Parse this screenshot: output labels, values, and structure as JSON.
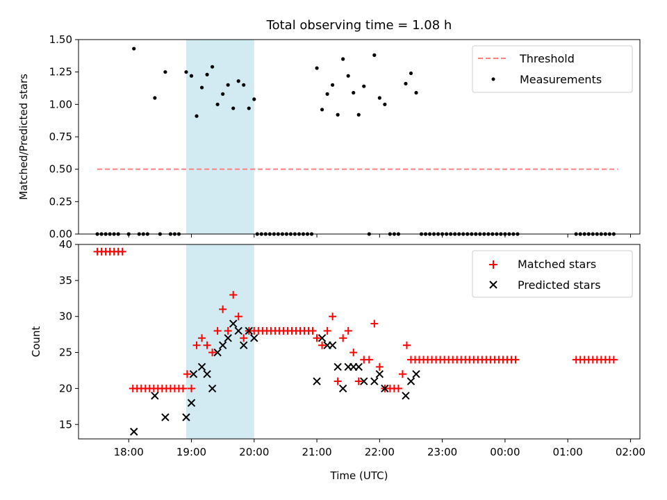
{
  "chart_data": [
    {
      "type": "scatter",
      "title": "Total observing time = 1.08 h",
      "ylabel": "Matched/Predicted stars",
      "xlabel": "",
      "xlim": [
        "17:12",
        "02:09"
      ],
      "ylim": [
        0,
        1.5
      ],
      "yticks": [
        "0.00",
        "0.25",
        "0.50",
        "0.75",
        "1.00",
        "1.25",
        "1.50"
      ],
      "xticks_shown": false,
      "shaded_region": {
        "x_start": "18:55",
        "x_end": "20:00",
        "color": "#add8e6"
      },
      "legend": {
        "placement": "upper right",
        "entries": [
          "Threshold",
          "Measurements"
        ]
      },
      "series": [
        {
          "name": "Threshold",
          "style": "dashed-line",
          "color": "#ff7f7f",
          "points": [
            [
              "17:30",
              0.5
            ],
            [
              "01:48",
              0.5
            ]
          ]
        },
        {
          "name": "Measurements",
          "style": "dot",
          "color": "#000000",
          "points": [
            [
              "17:30",
              0
            ],
            [
              "17:34",
              0
            ],
            [
              "17:38",
              0
            ],
            [
              "17:42",
              0
            ],
            [
              "17:46",
              0
            ],
            [
              "17:50",
              0
            ],
            [
              "18:00",
              0
            ],
            [
              "18:05",
              1.43
            ],
            [
              "18:10",
              0
            ],
            [
              "18:14",
              0
            ],
            [
              "18:18",
              0
            ],
            [
              "18:25",
              1.05
            ],
            [
              "18:30",
              0
            ],
            [
              "18:35",
              1.25
            ],
            [
              "18:40",
              0
            ],
            [
              "18:44",
              0
            ],
            [
              "18:48",
              0
            ],
            [
              "18:55",
              1.25
            ],
            [
              "19:00",
              1.22
            ],
            [
              "19:05",
              0.91
            ],
            [
              "19:10",
              1.13
            ],
            [
              "19:15",
              1.23
            ],
            [
              "19:20",
              1.29
            ],
            [
              "19:25",
              1.0
            ],
            [
              "19:30",
              1.08
            ],
            [
              "19:35",
              1.15
            ],
            [
              "19:40",
              0.97
            ],
            [
              "19:45",
              1.18
            ],
            [
              "19:50",
              1.15
            ],
            [
              "19:55",
              0.97
            ],
            [
              "20:00",
              1.04
            ],
            [
              "20:03",
              0
            ],
            [
              "20:07",
              0
            ],
            [
              "20:11",
              0
            ],
            [
              "20:15",
              0
            ],
            [
              "20:19",
              0
            ],
            [
              "20:23",
              0
            ],
            [
              "20:27",
              0
            ],
            [
              "20:31",
              0
            ],
            [
              "20:35",
              0
            ],
            [
              "20:39",
              0
            ],
            [
              "20:43",
              0
            ],
            [
              "20:47",
              0
            ],
            [
              "20:51",
              0
            ],
            [
              "20:55",
              0
            ],
            [
              "21:00",
              1.28
            ],
            [
              "21:05",
              0.96
            ],
            [
              "21:10",
              1.08
            ],
            [
              "21:15",
              1.15
            ],
            [
              "21:20",
              0.92
            ],
            [
              "21:25",
              1.35
            ],
            [
              "21:30",
              1.22
            ],
            [
              "21:35",
              1.09
            ],
            [
              "21:40",
              0.92
            ],
            [
              "21:45",
              1.14
            ],
            [
              "21:50",
              0
            ],
            [
              "21:55",
              1.38
            ],
            [
              "22:00",
              1.05
            ],
            [
              "22:05",
              1.0
            ],
            [
              "22:10",
              0
            ],
            [
              "22:14",
              0
            ],
            [
              "22:18",
              0
            ],
            [
              "22:25",
              1.16
            ],
            [
              "22:30",
              1.24
            ],
            [
              "22:35",
              1.09
            ],
            [
              "22:40",
              0
            ],
            [
              "22:44",
              0
            ],
            [
              "22:48",
              0
            ],
            [
              "22:52",
              0
            ],
            [
              "22:56",
              0
            ],
            [
              "23:00",
              0
            ],
            [
              "23:04",
              0
            ],
            [
              "23:08",
              0
            ],
            [
              "23:12",
              0
            ],
            [
              "23:16",
              0
            ],
            [
              "23:20",
              0
            ],
            [
              "23:24",
              0
            ],
            [
              "23:28",
              0
            ],
            [
              "23:32",
              0
            ],
            [
              "23:36",
              0
            ],
            [
              "23:40",
              0
            ],
            [
              "23:44",
              0
            ],
            [
              "23:48",
              0
            ],
            [
              "23:52",
              0
            ],
            [
              "23:56",
              0
            ],
            [
              "00:00",
              0
            ],
            [
              "00:04",
              0
            ],
            [
              "00:08",
              0
            ],
            [
              "00:12",
              0
            ],
            [
              "01:08",
              0
            ],
            [
              "01:12",
              0
            ],
            [
              "01:16",
              0
            ],
            [
              "01:20",
              0
            ],
            [
              "01:24",
              0
            ],
            [
              "01:28",
              0
            ],
            [
              "01:32",
              0
            ],
            [
              "01:36",
              0
            ],
            [
              "01:40",
              0
            ],
            [
              "01:44",
              0
            ]
          ]
        }
      ]
    },
    {
      "type": "scatter",
      "title": "",
      "xlabel": "Time (UTC)",
      "ylabel": "Count",
      "xlim": [
        "17:12",
        "02:09"
      ],
      "ylim": [
        13,
        40
      ],
      "yticks": [
        "15",
        "20",
        "25",
        "30",
        "35",
        "40"
      ],
      "xticks": [
        "18:00",
        "19:00",
        "20:00",
        "21:00",
        "22:00",
        "23:00",
        "00:00",
        "01:00",
        "02:00"
      ],
      "shaded_region": {
        "x_start": "18:55",
        "x_end": "20:00",
        "color": "#add8e6"
      },
      "legend": {
        "placement": "upper right",
        "entries": [
          "Matched stars",
          "Predicted stars"
        ]
      },
      "series": [
        {
          "name": "Matched stars",
          "marker": "plus",
          "color": "#ff0000",
          "points": [
            [
              "17:30",
              39
            ],
            [
              "17:34",
              39
            ],
            [
              "17:38",
              39
            ],
            [
              "17:42",
              39
            ],
            [
              "17:46",
              39
            ],
            [
              "17:50",
              39
            ],
            [
              "17:54",
              39
            ],
            [
              "18:04",
              20
            ],
            [
              "18:08",
              20
            ],
            [
              "18:12",
              20
            ],
            [
              "18:16",
              20
            ],
            [
              "18:20",
              20
            ],
            [
              "18:24",
              20
            ],
            [
              "18:28",
              20
            ],
            [
              "18:32",
              20
            ],
            [
              "18:36",
              20
            ],
            [
              "18:40",
              20
            ],
            [
              "18:44",
              20
            ],
            [
              "18:48",
              20
            ],
            [
              "18:52",
              20
            ],
            [
              "18:56",
              22
            ],
            [
              "19:00",
              20
            ],
            [
              "19:05",
              26
            ],
            [
              "19:10",
              27
            ],
            [
              "19:15",
              26
            ],
            [
              "19:20",
              25
            ],
            [
              "19:25",
              28
            ],
            [
              "19:30",
              31
            ],
            [
              "19:35",
              28
            ],
            [
              "19:40",
              33
            ],
            [
              "19:45",
              30
            ],
            [
              "19:50",
              27
            ],
            [
              "19:55",
              28
            ],
            [
              "20:00",
              28
            ],
            [
              "20:04",
              28
            ],
            [
              "20:08",
              28
            ],
            [
              "20:12",
              28
            ],
            [
              "20:16",
              28
            ],
            [
              "20:20",
              28
            ],
            [
              "20:24",
              28
            ],
            [
              "20:28",
              28
            ],
            [
              "20:32",
              28
            ],
            [
              "20:36",
              28
            ],
            [
              "20:40",
              28
            ],
            [
              "20:44",
              28
            ],
            [
              "20:48",
              28
            ],
            [
              "20:52",
              28
            ],
            [
              "20:56",
              28
            ],
            [
              "21:00",
              27
            ],
            [
              "21:05",
              26
            ],
            [
              "21:10",
              28
            ],
            [
              "21:15",
              30
            ],
            [
              "21:20",
              21
            ],
            [
              "21:25",
              27
            ],
            [
              "21:30",
              28
            ],
            [
              "21:35",
              25
            ],
            [
              "21:40",
              21
            ],
            [
              "21:45",
              24
            ],
            [
              "21:50",
              24
            ],
            [
              "21:55",
              29
            ],
            [
              "22:00",
              23
            ],
            [
              "22:05",
              20
            ],
            [
              "22:10",
              20
            ],
            [
              "22:14",
              20
            ],
            [
              "22:18",
              20
            ],
            [
              "22:22",
              22
            ],
            [
              "22:26",
              26
            ],
            [
              "22:30",
              24
            ],
            [
              "22:34",
              24
            ],
            [
              "22:38",
              24
            ],
            [
              "22:42",
              24
            ],
            [
              "22:46",
              24
            ],
            [
              "22:50",
              24
            ],
            [
              "22:54",
              24
            ],
            [
              "22:58",
              24
            ],
            [
              "23:02",
              24
            ],
            [
              "23:06",
              24
            ],
            [
              "23:10",
              24
            ],
            [
              "23:14",
              24
            ],
            [
              "23:18",
              24
            ],
            [
              "23:22",
              24
            ],
            [
              "23:26",
              24
            ],
            [
              "23:30",
              24
            ],
            [
              "23:34",
              24
            ],
            [
              "23:38",
              24
            ],
            [
              "23:42",
              24
            ],
            [
              "23:46",
              24
            ],
            [
              "23:50",
              24
            ],
            [
              "23:54",
              24
            ],
            [
              "23:58",
              24
            ],
            [
              "00:02",
              24
            ],
            [
              "00:06",
              24
            ],
            [
              "00:10",
              24
            ],
            [
              "01:08",
              24
            ],
            [
              "01:12",
              24
            ],
            [
              "01:16",
              24
            ],
            [
              "01:20",
              24
            ],
            [
              "01:24",
              24
            ],
            [
              "01:28",
              24
            ],
            [
              "01:32",
              24
            ],
            [
              "01:36",
              24
            ],
            [
              "01:40",
              24
            ],
            [
              "01:44",
              24
            ]
          ]
        },
        {
          "name": "Predicted stars",
          "marker": "x",
          "color": "#000000",
          "points": [
            [
              "18:05",
              14
            ],
            [
              "18:25",
              19
            ],
            [
              "18:35",
              16
            ],
            [
              "18:55",
              16
            ],
            [
              "19:00",
              18
            ],
            [
              "19:02",
              22
            ],
            [
              "19:10",
              23
            ],
            [
              "19:15",
              22
            ],
            [
              "19:20",
              20
            ],
            [
              "19:25",
              25
            ],
            [
              "19:30",
              26
            ],
            [
              "19:35",
              27
            ],
            [
              "19:40",
              29
            ],
            [
              "19:45",
              28
            ],
            [
              "19:50",
              26
            ],
            [
              "19:55",
              28
            ],
            [
              "20:00",
              27
            ],
            [
              "21:00",
              21
            ],
            [
              "21:05",
              27
            ],
            [
              "21:10",
              26
            ],
            [
              "21:15",
              26
            ],
            [
              "21:20",
              23
            ],
            [
              "21:25",
              20
            ],
            [
              "21:30",
              23
            ],
            [
              "21:35",
              23
            ],
            [
              "21:40",
              23
            ],
            [
              "21:45",
              21
            ],
            [
              "21:55",
              21
            ],
            [
              "22:00",
              22
            ],
            [
              "22:05",
              20
            ],
            [
              "22:25",
              19
            ],
            [
              "22:30",
              21
            ],
            [
              "22:35",
              22
            ]
          ]
        }
      ]
    }
  ]
}
